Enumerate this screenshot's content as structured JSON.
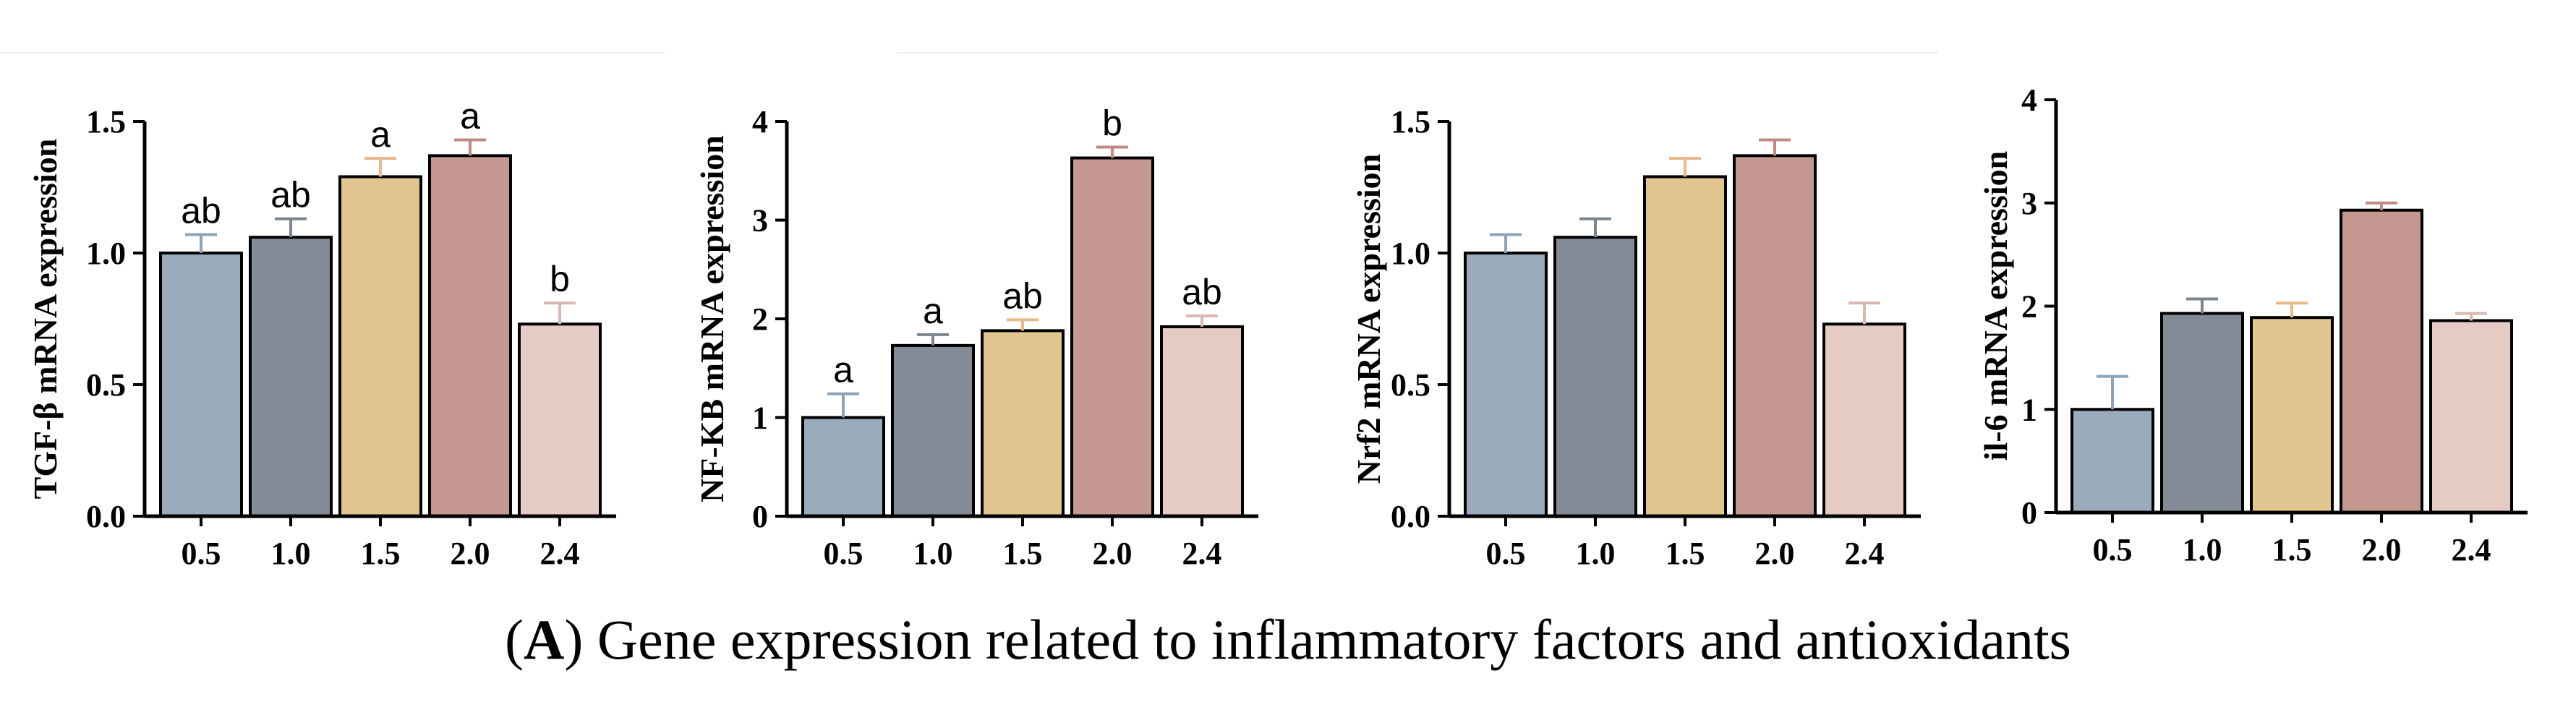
{
  "caption": {
    "open": "(",
    "letter": "A",
    "close": ")",
    "text": " Gene expression related to inflammatory factors and antioxidants"
  },
  "colors": [
    "#9aabbc",
    "#838c96",
    "#e2c68f",
    "#c49791",
    "#e6cbc4"
  ],
  "chart_data": [
    {
      "type": "bar",
      "ylabel": "TGF-β   mRNA expression",
      "categories": [
        "0.5",
        "1.0",
        "1.5",
        "2.0",
        "2.4"
      ],
      "values": [
        1.0,
        1.06,
        1.29,
        1.37,
        0.73
      ],
      "errors": [
        0.07,
        0.07,
        0.07,
        0.06,
        0.08
      ],
      "significance": [
        "ab",
        "ab",
        "a",
        "a",
        "b"
      ],
      "ylim": [
        0,
        1.5
      ],
      "yticks": [
        0,
        0.5,
        1.0,
        1.5
      ],
      "ytick_labels": [
        "0.0",
        "0.5",
        "1.0",
        "1.5"
      ]
    },
    {
      "type": "bar",
      "ylabel": "NF-KB  mRNA expression",
      "categories": [
        "0.5",
        "1.0",
        "1.5",
        "2.0",
        "2.4"
      ],
      "values": [
        1.0,
        1.73,
        1.88,
        3.63,
        1.92
      ],
      "errors": [
        0.24,
        0.11,
        0.11,
        0.11,
        0.11
      ],
      "significance": [
        "a",
        "a",
        "ab",
        "b",
        "ab"
      ],
      "ylim": [
        0,
        4
      ],
      "yticks": [
        0,
        1,
        2,
        3,
        4
      ],
      "ytick_labels": [
        "0",
        "1",
        "2",
        "3",
        "4"
      ]
    },
    {
      "type": "bar",
      "ylabel": "Nrf2  mRNA expression",
      "categories": [
        "0.5",
        "1.0",
        "1.5",
        "2.0",
        "2.4"
      ],
      "values": [
        1.0,
        1.06,
        1.29,
        1.37,
        0.73
      ],
      "errors": [
        0.07,
        0.07,
        0.07,
        0.06,
        0.08
      ],
      "significance": [
        "",
        "",
        "",
        "",
        ""
      ],
      "ylim": [
        0,
        1.5
      ],
      "yticks": [
        0,
        0.5,
        1.0,
        1.5
      ],
      "ytick_labels": [
        "0.0",
        "0.5",
        "1.0",
        "1.5"
      ]
    },
    {
      "type": "bar",
      "ylabel": "il-6  mRNA expression",
      "categories": [
        "0.5",
        "1.0",
        "1.5",
        "2.0",
        "2.4"
      ],
      "values": [
        1.0,
        1.93,
        1.89,
        2.93,
        1.86
      ],
      "errors": [
        0.32,
        0.14,
        0.14,
        0.07,
        0.07
      ],
      "significance": [
        "",
        "",
        "",
        "",
        ""
      ],
      "ylim": [
        0,
        4
      ],
      "yticks": [
        0,
        1,
        2,
        3,
        4
      ],
      "ytick_labels": [
        "0",
        "1",
        "2",
        "3",
        "4"
      ]
    }
  ]
}
